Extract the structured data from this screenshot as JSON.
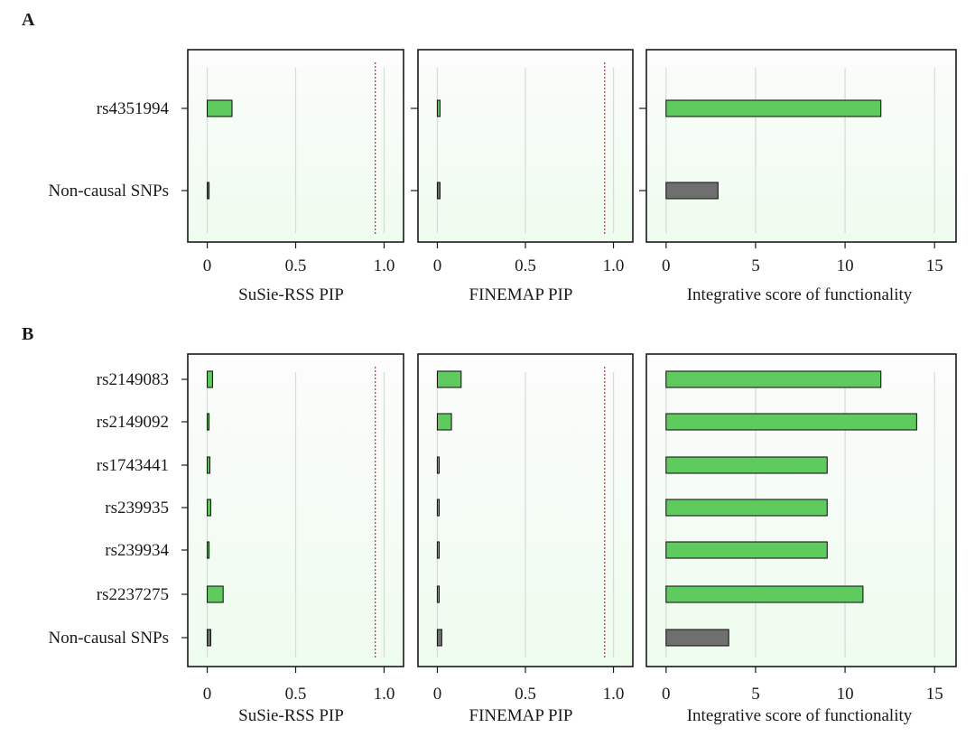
{
  "chart_data": [
    {
      "panel": "A",
      "categories": [
        "rs4351994",
        "Non-causal SNPs"
      ],
      "subplots": [
        {
          "type": "bar",
          "orientation": "horizontal",
          "xlabel": "SuSie-RSS PIP",
          "xlim": [
            -0.11,
            1.11
          ],
          "ticks": [
            0,
            0.5,
            1.0
          ],
          "tick_labels": [
            "0",
            "0.5",
            "1.0"
          ],
          "threshold": 0.95,
          "values": [
            0.14,
            0.01
          ],
          "colors": [
            "#5fcb5f",
            "#6f6f6f"
          ]
        },
        {
          "type": "bar",
          "orientation": "horizontal",
          "xlabel": "FINEMAP PIP",
          "xlim": [
            -0.11,
            1.11
          ],
          "ticks": [
            0,
            0.5,
            1.0
          ],
          "tick_labels": [
            "0",
            "0.5",
            "1.0"
          ],
          "threshold": 0.95,
          "values": [
            0.015,
            0.015
          ],
          "colors": [
            "#5fcb5f",
            "#6f6f6f"
          ]
        },
        {
          "type": "bar",
          "orientation": "horizontal",
          "xlabel": "Integrative score of functionality",
          "xlim": [
            -1.1,
            16.2
          ],
          "ticks": [
            0,
            5,
            10,
            15
          ],
          "tick_labels": [
            "0",
            "5",
            "10",
            "15"
          ],
          "values": [
            12,
            2.9
          ],
          "colors": [
            "#5fcb5f",
            "#6f6f6f"
          ]
        }
      ]
    },
    {
      "panel": "B",
      "categories": [
        "rs2149083",
        "rs2149092",
        "rs1743441",
        "rs239935",
        "rs239934",
        "rs2237275",
        "Non-causal SNPs"
      ],
      "subplots": [
        {
          "type": "bar",
          "orientation": "horizontal",
          "xlabel": "SuSie-RSS PIP",
          "xlim": [
            -0.11,
            1.11
          ],
          "ticks": [
            0,
            0.5,
            1.0
          ],
          "tick_labels": [
            "0",
            "0.5",
            "1.0"
          ],
          "threshold": 0.95,
          "values": [
            0.03,
            0.005,
            0.015,
            0.02,
            0.003,
            0.09,
            0.02
          ],
          "colors": [
            "#5fcb5f",
            "#5fcb5f",
            "#5fcb5f",
            "#5fcb5f",
            "#5fcb5f",
            "#5fcb5f",
            "#6f6f6f"
          ]
        },
        {
          "type": "bar",
          "orientation": "horizontal",
          "xlabel": "FINEMAP PIP",
          "xlim": [
            -0.11,
            1.11
          ],
          "ticks": [
            0,
            0.5,
            1.0
          ],
          "tick_labels": [
            "0",
            "0.5",
            "1.0"
          ],
          "threshold": 0.95,
          "values": [
            0.135,
            0.08,
            0.008,
            0.004,
            0.004,
            0.004,
            0.025
          ],
          "colors": [
            "#5fcb5f",
            "#5fcb5f",
            "#5fcb5f",
            "#5fcb5f",
            "#5fcb5f",
            "#5fcb5f",
            "#6f6f6f"
          ]
        },
        {
          "type": "bar",
          "orientation": "horizontal",
          "xlabel": "Integrative score of functionality",
          "xlim": [
            -1.1,
            16.2
          ],
          "ticks": [
            0,
            5,
            10,
            15
          ],
          "tick_labels": [
            "0",
            "5",
            "10",
            "15"
          ],
          "values": [
            12,
            14,
            9,
            9,
            9,
            11,
            3.5
          ],
          "colors": [
            "#5fcb5f",
            "#5fcb5f",
            "#5fcb5f",
            "#5fcb5f",
            "#5fcb5f",
            "#5fcb5f",
            "#6f6f6f"
          ]
        }
      ]
    }
  ]
}
